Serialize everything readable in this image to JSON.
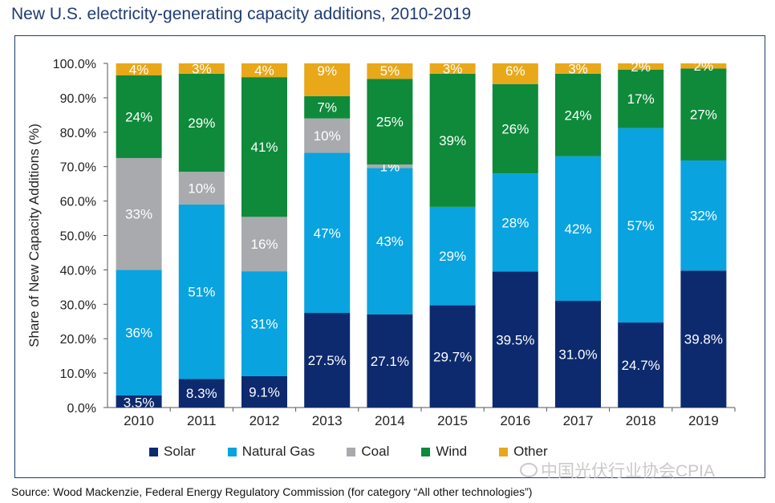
{
  "title": "New U.S. electricity-generating capacity additions, 2010-2019",
  "source": "Source: Wood Mackenzie, Federal Energy Regulatory Commission (for category “All other technologies”)",
  "watermark": "中国光伏行业协会CPIA",
  "colors": {
    "solar": "#0d2a6e",
    "gas": "#09a3e0",
    "coal": "#a8aaad",
    "wind": "#0e8a3a",
    "other": "#e8a819",
    "axis": "#555555",
    "frame": "#1f3c73"
  },
  "chart_data": {
    "type": "bar",
    "stacked": true,
    "title": "New U.S. electricity-generating capacity additions, 2010-2019",
    "xlabel": "",
    "ylabel": "Share of New Capacity Additions (%)",
    "ylim": [
      0,
      100
    ],
    "ytick_labels": [
      "0.0%",
      "10.0%",
      "20.0%",
      "30.0%",
      "40.0%",
      "50.0%",
      "60.0%",
      "70.0%",
      "80.0%",
      "90.0%",
      "100.0%"
    ],
    "legend_position": "bottom",
    "categories": [
      "2010",
      "2011",
      "2012",
      "2013",
      "2014",
      "2015",
      "2016",
      "2017",
      "2018",
      "2019"
    ],
    "series": [
      {
        "key": "solar",
        "name": "Solar",
        "values": [
          3.5,
          8.3,
          9.1,
          27.5,
          27.1,
          29.7,
          39.5,
          31.0,
          24.7,
          39.8
        ],
        "labels": [
          "3.5%",
          "8.3%",
          "9.1%",
          "27.5%",
          "27.1%",
          "29.7%",
          "39.5%",
          "31.0%",
          "24.7%",
          "39.8%"
        ]
      },
      {
        "key": "gas",
        "name": "Natural Gas",
        "values": [
          36.5,
          50.7,
          30.5,
          46.5,
          42.5,
          28.6,
          28.5,
          42.0,
          56.5,
          32.0
        ],
        "labels": [
          "36%",
          "51%",
          "31%",
          "47%",
          "43%",
          "29%",
          "28%",
          "42%",
          "57%",
          "32%"
        ]
      },
      {
        "key": "coal",
        "name": "Coal",
        "values": [
          32.5,
          9.5,
          15.8,
          10.0,
          1.0,
          0,
          0,
          0,
          0,
          0
        ],
        "labels": [
          "33%",
          "10%",
          "16%",
          "10%",
          "1%",
          "",
          "",
          "",
          "",
          ""
        ]
      },
      {
        "key": "wind",
        "name": "Wind",
        "values": [
          24.0,
          28.5,
          40.6,
          6.5,
          24.9,
          38.7,
          26.0,
          24.0,
          17.0,
          26.7
        ],
        "labels": [
          "24%",
          "29%",
          "41%",
          "7%",
          "25%",
          "39%",
          "26%",
          "24%",
          "17%",
          "27%"
        ]
      },
      {
        "key": "other",
        "name": "Other",
        "values": [
          3.5,
          3.0,
          4.0,
          9.5,
          4.5,
          3.0,
          6.0,
          3.0,
          1.8,
          1.5
        ],
        "labels": [
          "4%",
          "3%",
          "4%",
          "9%",
          "5%",
          "3%",
          "6%",
          "3%",
          "2%",
          "2%"
        ]
      }
    ]
  }
}
